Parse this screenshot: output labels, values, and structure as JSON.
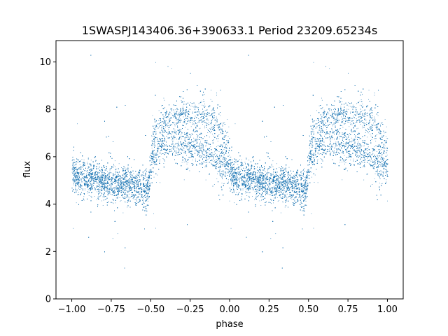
{
  "chart_data": {
    "type": "scatter",
    "title": "1SWASPJ143406.36+390633.1 Period 23209.65234s",
    "xlabel": "phase",
    "ylabel": "flux",
    "xlim": [
      -1.1,
      1.1
    ],
    "ylim": [
      0,
      10.9
    ],
    "xticks": [
      -1.0,
      -0.75,
      -0.5,
      -0.25,
      0.0,
      0.25,
      0.5,
      0.75,
      1.0
    ],
    "xtick_labels": [
      "−1.00",
      "−0.75",
      "−0.50",
      "−0.25",
      "0.00",
      "0.25",
      "0.50",
      "0.75",
      "1.00"
    ],
    "yticks": [
      0,
      2,
      4,
      6,
      8,
      10
    ],
    "ytick_labels": [
      "0",
      "2",
      "4",
      "6",
      "8",
      "10"
    ],
    "marker_color": "#1f77b4",
    "grid": false,
    "legend": "none",
    "light_curve_profile": {
      "phase": [
        0.0,
        0.1,
        0.2,
        0.3,
        0.4,
        0.48,
        0.5,
        0.55,
        0.6,
        0.7,
        0.8,
        0.9,
        1.0
      ],
      "lower_branch_flux": [
        5.3,
        5.1,
        4.95,
        4.85,
        4.75,
        4.6,
        5.6,
        6.4,
        6.6,
        6.5,
        6.3,
        6.0,
        5.4
      ],
      "upper_branch_flux": [
        null,
        null,
        null,
        null,
        null,
        null,
        6.3,
        7.5,
        7.6,
        7.8,
        7.7,
        7.5,
        6.4
      ]
    },
    "points_per_cycle": 14000,
    "scatter_sigma": 0.45
  }
}
